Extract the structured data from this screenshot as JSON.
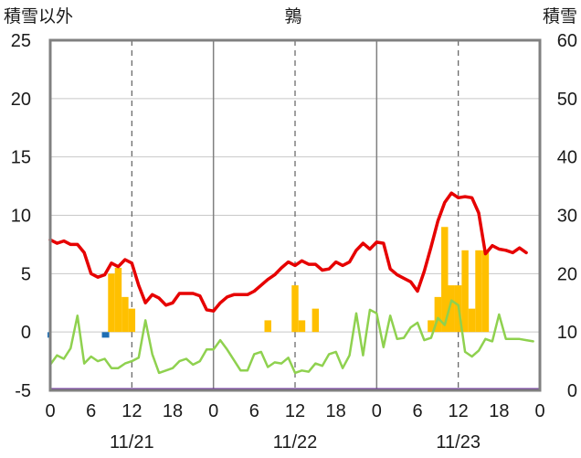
{
  "chart_data": {
    "type": "bar+line",
    "title": "鶉",
    "left_axis_title": "積雪以外",
    "right_axis_title": "積雪",
    "y_left": {
      "min": -5,
      "max": 25,
      "ticks": [
        -5,
        0,
        5,
        10,
        15,
        20,
        25
      ]
    },
    "y_right": {
      "min": 0,
      "max": 60,
      "ticks": [
        0,
        10,
        20,
        30,
        40,
        50,
        60
      ]
    },
    "x_hours": {
      "min": 0,
      "max": 72
    },
    "x_tick_labels": [
      {
        "h": 0,
        "label": "0"
      },
      {
        "h": 6,
        "label": "6"
      },
      {
        "h": 12,
        "label": "12"
      },
      {
        "h": 18,
        "label": "18"
      },
      {
        "h": 24,
        "label": "0"
      },
      {
        "h": 30,
        "label": "6"
      },
      {
        "h": 36,
        "label": "12"
      },
      {
        "h": 42,
        "label": "18"
      },
      {
        "h": 48,
        "label": "0"
      },
      {
        "h": 54,
        "label": "6"
      },
      {
        "h": 60,
        "label": "12"
      },
      {
        "h": 66,
        "label": "18"
      },
      {
        "h": 72,
        "label": "0"
      }
    ],
    "date_labels": [
      {
        "h": 12,
        "label": "11/21"
      },
      {
        "h": 36,
        "label": "11/22"
      },
      {
        "h": 60,
        "label": "11/23"
      }
    ],
    "colors": {
      "red_line": "#e60000",
      "green_line": "#8fd14f",
      "bars": "#ffc000",
      "blue_marks": "#1f6fb5",
      "purple_line": "#7030a0",
      "frame": "#808080",
      "dashed": "#606060"
    },
    "bars": [
      {
        "h": 9,
        "v": 5
      },
      {
        "h": 10,
        "v": 5.5
      },
      {
        "h": 11,
        "v": 3
      },
      {
        "h": 12,
        "v": 2
      },
      {
        "h": 32,
        "v": 1
      },
      {
        "h": 36,
        "v": 4
      },
      {
        "h": 37,
        "v": 1
      },
      {
        "h": 39,
        "v": 2
      },
      {
        "h": 56,
        "v": 1
      },
      {
        "h": 57,
        "v": 3
      },
      {
        "h": 58,
        "v": 9
      },
      {
        "h": 59,
        "v": 4
      },
      {
        "h": 60,
        "v": 4
      },
      {
        "h": 61,
        "v": 7
      },
      {
        "h": 62,
        "v": 2
      },
      {
        "h": 63,
        "v": 7
      },
      {
        "h": 64,
        "v": 7
      }
    ],
    "red_series": [
      {
        "h": 0,
        "v": 7.9
      },
      {
        "h": 1,
        "v": 7.6
      },
      {
        "h": 2,
        "v": 7.8
      },
      {
        "h": 3,
        "v": 7.5
      },
      {
        "h": 4,
        "v": 7.5
      },
      {
        "h": 5,
        "v": 6.8
      },
      {
        "h": 6,
        "v": 5.0
      },
      {
        "h": 7,
        "v": 4.7
      },
      {
        "h": 8,
        "v": 4.9
      },
      {
        "h": 9,
        "v": 5.9
      },
      {
        "h": 10,
        "v": 5.6
      },
      {
        "h": 11,
        "v": 6.2
      },
      {
        "h": 12,
        "v": 5.9
      },
      {
        "h": 13,
        "v": 4.0
      },
      {
        "h": 14,
        "v": 2.5
      },
      {
        "h": 15,
        "v": 3.2
      },
      {
        "h": 16,
        "v": 2.9
      },
      {
        "h": 17,
        "v": 2.3
      },
      {
        "h": 18,
        "v": 2.5
      },
      {
        "h": 19,
        "v": 3.3
      },
      {
        "h": 20,
        "v": 3.3
      },
      {
        "h": 21,
        "v": 3.3
      },
      {
        "h": 22,
        "v": 3.1
      },
      {
        "h": 23,
        "v": 1.9
      },
      {
        "h": 24,
        "v": 1.8
      },
      {
        "h": 25,
        "v": 2.5
      },
      {
        "h": 26,
        "v": 3.0
      },
      {
        "h": 27,
        "v": 3.2
      },
      {
        "h": 28,
        "v": 3.2
      },
      {
        "h": 29,
        "v": 3.2
      },
      {
        "h": 30,
        "v": 3.5
      },
      {
        "h": 31,
        "v": 4.0
      },
      {
        "h": 32,
        "v": 4.5
      },
      {
        "h": 33,
        "v": 4.9
      },
      {
        "h": 34,
        "v": 5.5
      },
      {
        "h": 35,
        "v": 6.0
      },
      {
        "h": 36,
        "v": 5.7
      },
      {
        "h": 37,
        "v": 6.1
      },
      {
        "h": 38,
        "v": 5.8
      },
      {
        "h": 39,
        "v": 5.8
      },
      {
        "h": 40,
        "v": 5.3
      },
      {
        "h": 41,
        "v": 5.4
      },
      {
        "h": 42,
        "v": 6.0
      },
      {
        "h": 43,
        "v": 5.7
      },
      {
        "h": 44,
        "v": 6.0
      },
      {
        "h": 45,
        "v": 7.0
      },
      {
        "h": 46,
        "v": 7.6
      },
      {
        "h": 47,
        "v": 7.1
      },
      {
        "h": 48,
        "v": 7.7
      },
      {
        "h": 49,
        "v": 7.6
      },
      {
        "h": 50,
        "v": 5.4
      },
      {
        "h": 51,
        "v": 4.9
      },
      {
        "h": 52,
        "v": 4.6
      },
      {
        "h": 53,
        "v": 4.3
      },
      {
        "h": 54,
        "v": 3.5
      },
      {
        "h": 55,
        "v": 5.2
      },
      {
        "h": 56,
        "v": 7.3
      },
      {
        "h": 57,
        "v": 9.5
      },
      {
        "h": 58,
        "v": 11.1
      },
      {
        "h": 59,
        "v": 11.9
      },
      {
        "h": 60,
        "v": 11.5
      },
      {
        "h": 61,
        "v": 11.6
      },
      {
        "h": 62,
        "v": 11.5
      },
      {
        "h": 63,
        "v": 10.2
      },
      {
        "h": 64,
        "v": 6.7
      },
      {
        "h": 65,
        "v": 7.4
      },
      {
        "h": 66,
        "v": 7.1
      },
      {
        "h": 67,
        "v": 7.0
      },
      {
        "h": 68,
        "v": 6.8
      },
      {
        "h": 69,
        "v": 7.2
      },
      {
        "h": 70,
        "v": 6.8
      }
    ],
    "green_series": [
      {
        "h": 0,
        "v": -2.8
      },
      {
        "h": 1,
        "v": -2.0
      },
      {
        "h": 2,
        "v": -2.3
      },
      {
        "h": 3,
        "v": -1.4
      },
      {
        "h": 4,
        "v": 1.4
      },
      {
        "h": 5,
        "v": -2.7
      },
      {
        "h": 6,
        "v": -2.1
      },
      {
        "h": 7,
        "v": -2.5
      },
      {
        "h": 8,
        "v": -2.3
      },
      {
        "h": 9,
        "v": -3.1
      },
      {
        "h": 10,
        "v": -3.1
      },
      {
        "h": 11,
        "v": -2.7
      },
      {
        "h": 12,
        "v": -2.5
      },
      {
        "h": 13,
        "v": -2.2
      },
      {
        "h": 14,
        "v": 1.0
      },
      {
        "h": 15,
        "v": -1.9
      },
      {
        "h": 16,
        "v": -3.5
      },
      {
        "h": 17,
        "v": -3.3
      },
      {
        "h": 18,
        "v": -3.1
      },
      {
        "h": 19,
        "v": -2.5
      },
      {
        "h": 20,
        "v": -2.3
      },
      {
        "h": 21,
        "v": -2.8
      },
      {
        "h": 22,
        "v": -2.5
      },
      {
        "h": 23,
        "v": -1.5
      },
      {
        "h": 24,
        "v": -1.5
      },
      {
        "h": 25,
        "v": -0.7
      },
      {
        "h": 26,
        "v": -1.5
      },
      {
        "h": 27,
        "v": -2.4
      },
      {
        "h": 28,
        "v": -3.3
      },
      {
        "h": 29,
        "v": -3.3
      },
      {
        "h": 30,
        "v": -1.9
      },
      {
        "h": 31,
        "v": -1.7
      },
      {
        "h": 32,
        "v": -3.0
      },
      {
        "h": 33,
        "v": -2.6
      },
      {
        "h": 34,
        "v": -2.7
      },
      {
        "h": 35,
        "v": -2.2
      },
      {
        "h": 36,
        "v": -3.5
      },
      {
        "h": 37,
        "v": -3.3
      },
      {
        "h": 38,
        "v": -3.4
      },
      {
        "h": 39,
        "v": -2.7
      },
      {
        "h": 40,
        "v": -2.9
      },
      {
        "h": 41,
        "v": -1.9
      },
      {
        "h": 42,
        "v": -1.7
      },
      {
        "h": 43,
        "v": -3.1
      },
      {
        "h": 44,
        "v": -2.0
      },
      {
        "h": 45,
        "v": 1.6
      },
      {
        "h": 46,
        "v": -2.0
      },
      {
        "h": 47,
        "v": 1.9
      },
      {
        "h": 48,
        "v": 1.6
      },
      {
        "h": 49,
        "v": -1.3
      },
      {
        "h": 50,
        "v": 1.4
      },
      {
        "h": 51,
        "v": -0.6
      },
      {
        "h": 52,
        "v": -0.5
      },
      {
        "h": 53,
        "v": 0.4
      },
      {
        "h": 54,
        "v": 0.8
      },
      {
        "h": 55,
        "v": -0.7
      },
      {
        "h": 56,
        "v": -0.5
      },
      {
        "h": 57,
        "v": 1.2
      },
      {
        "h": 58,
        "v": 0.6
      },
      {
        "h": 59,
        "v": 2.7
      },
      {
        "h": 60,
        "v": 2.3
      },
      {
        "h": 61,
        "v": -1.7
      },
      {
        "h": 62,
        "v": -2.1
      },
      {
        "h": 63,
        "v": -1.6
      },
      {
        "h": 64,
        "v": -0.6
      },
      {
        "h": 65,
        "v": -0.8
      },
      {
        "h": 66,
        "v": 1.5
      },
      {
        "h": 67,
        "v": -0.6
      },
      {
        "h": 68,
        "v": -0.6
      },
      {
        "h": 69,
        "v": -0.6
      },
      {
        "h": 70,
        "v": -0.7
      },
      {
        "h": 71,
        "v": -0.8
      }
    ],
    "blue_marks": [
      {
        "h": 0,
        "v": -0.25
      },
      {
        "h": 8,
        "v": -0.25
      }
    ],
    "purple_baseline": {
      "v": -5
    },
    "dashed_hours": [
      12,
      36,
      60
    ],
    "solid_divider_hours": [
      24,
      48
    ],
    "grid": true,
    "legend": "none"
  }
}
